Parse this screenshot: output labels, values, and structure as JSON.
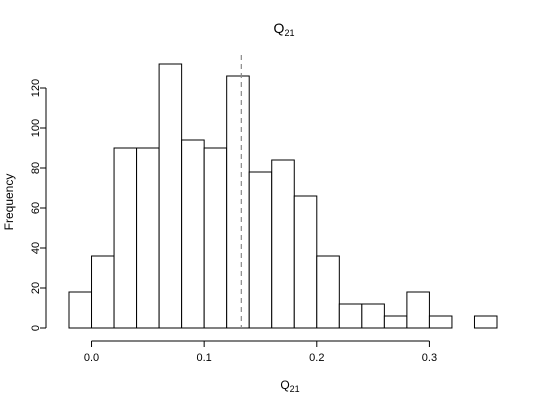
{
  "chart_data": {
    "type": "bar",
    "title": "Q",
    "title_subscript": "21",
    "xlabel": "Q",
    "xlabel_subscript": "21",
    "ylabel": "Frequency",
    "bin_edges": [
      -0.02,
      0.0,
      0.02,
      0.04,
      0.06,
      0.08,
      0.1,
      0.12,
      0.14,
      0.16,
      0.18,
      0.2,
      0.22,
      0.24,
      0.26,
      0.28,
      0.3,
      0.32,
      0.34,
      0.36
    ],
    "values": [
      18,
      36,
      90,
      90,
      132,
      94,
      90,
      126,
      78,
      84,
      66,
      36,
      12,
      12,
      6,
      18,
      6,
      0,
      6
    ],
    "reference_line_x": 0.133,
    "xlim": [
      -0.02,
      0.36
    ],
    "ylim": [
      0,
      132
    ],
    "x_ticks": [
      0.0,
      0.1,
      0.2,
      0.3
    ],
    "x_tick_labels": [
      "0.0",
      "0.1",
      "0.2",
      "0.3"
    ],
    "y_ticks": [
      0,
      20,
      40,
      60,
      80,
      100,
      120
    ],
    "y_tick_labels": [
      "0",
      "20",
      "40",
      "60",
      "80",
      "100",
      "120"
    ],
    "grid": false,
    "legend": "none",
    "bar_fill": "#ffffff",
    "bar_stroke": "#000000",
    "reference_line_color": "#8a8a8a"
  }
}
